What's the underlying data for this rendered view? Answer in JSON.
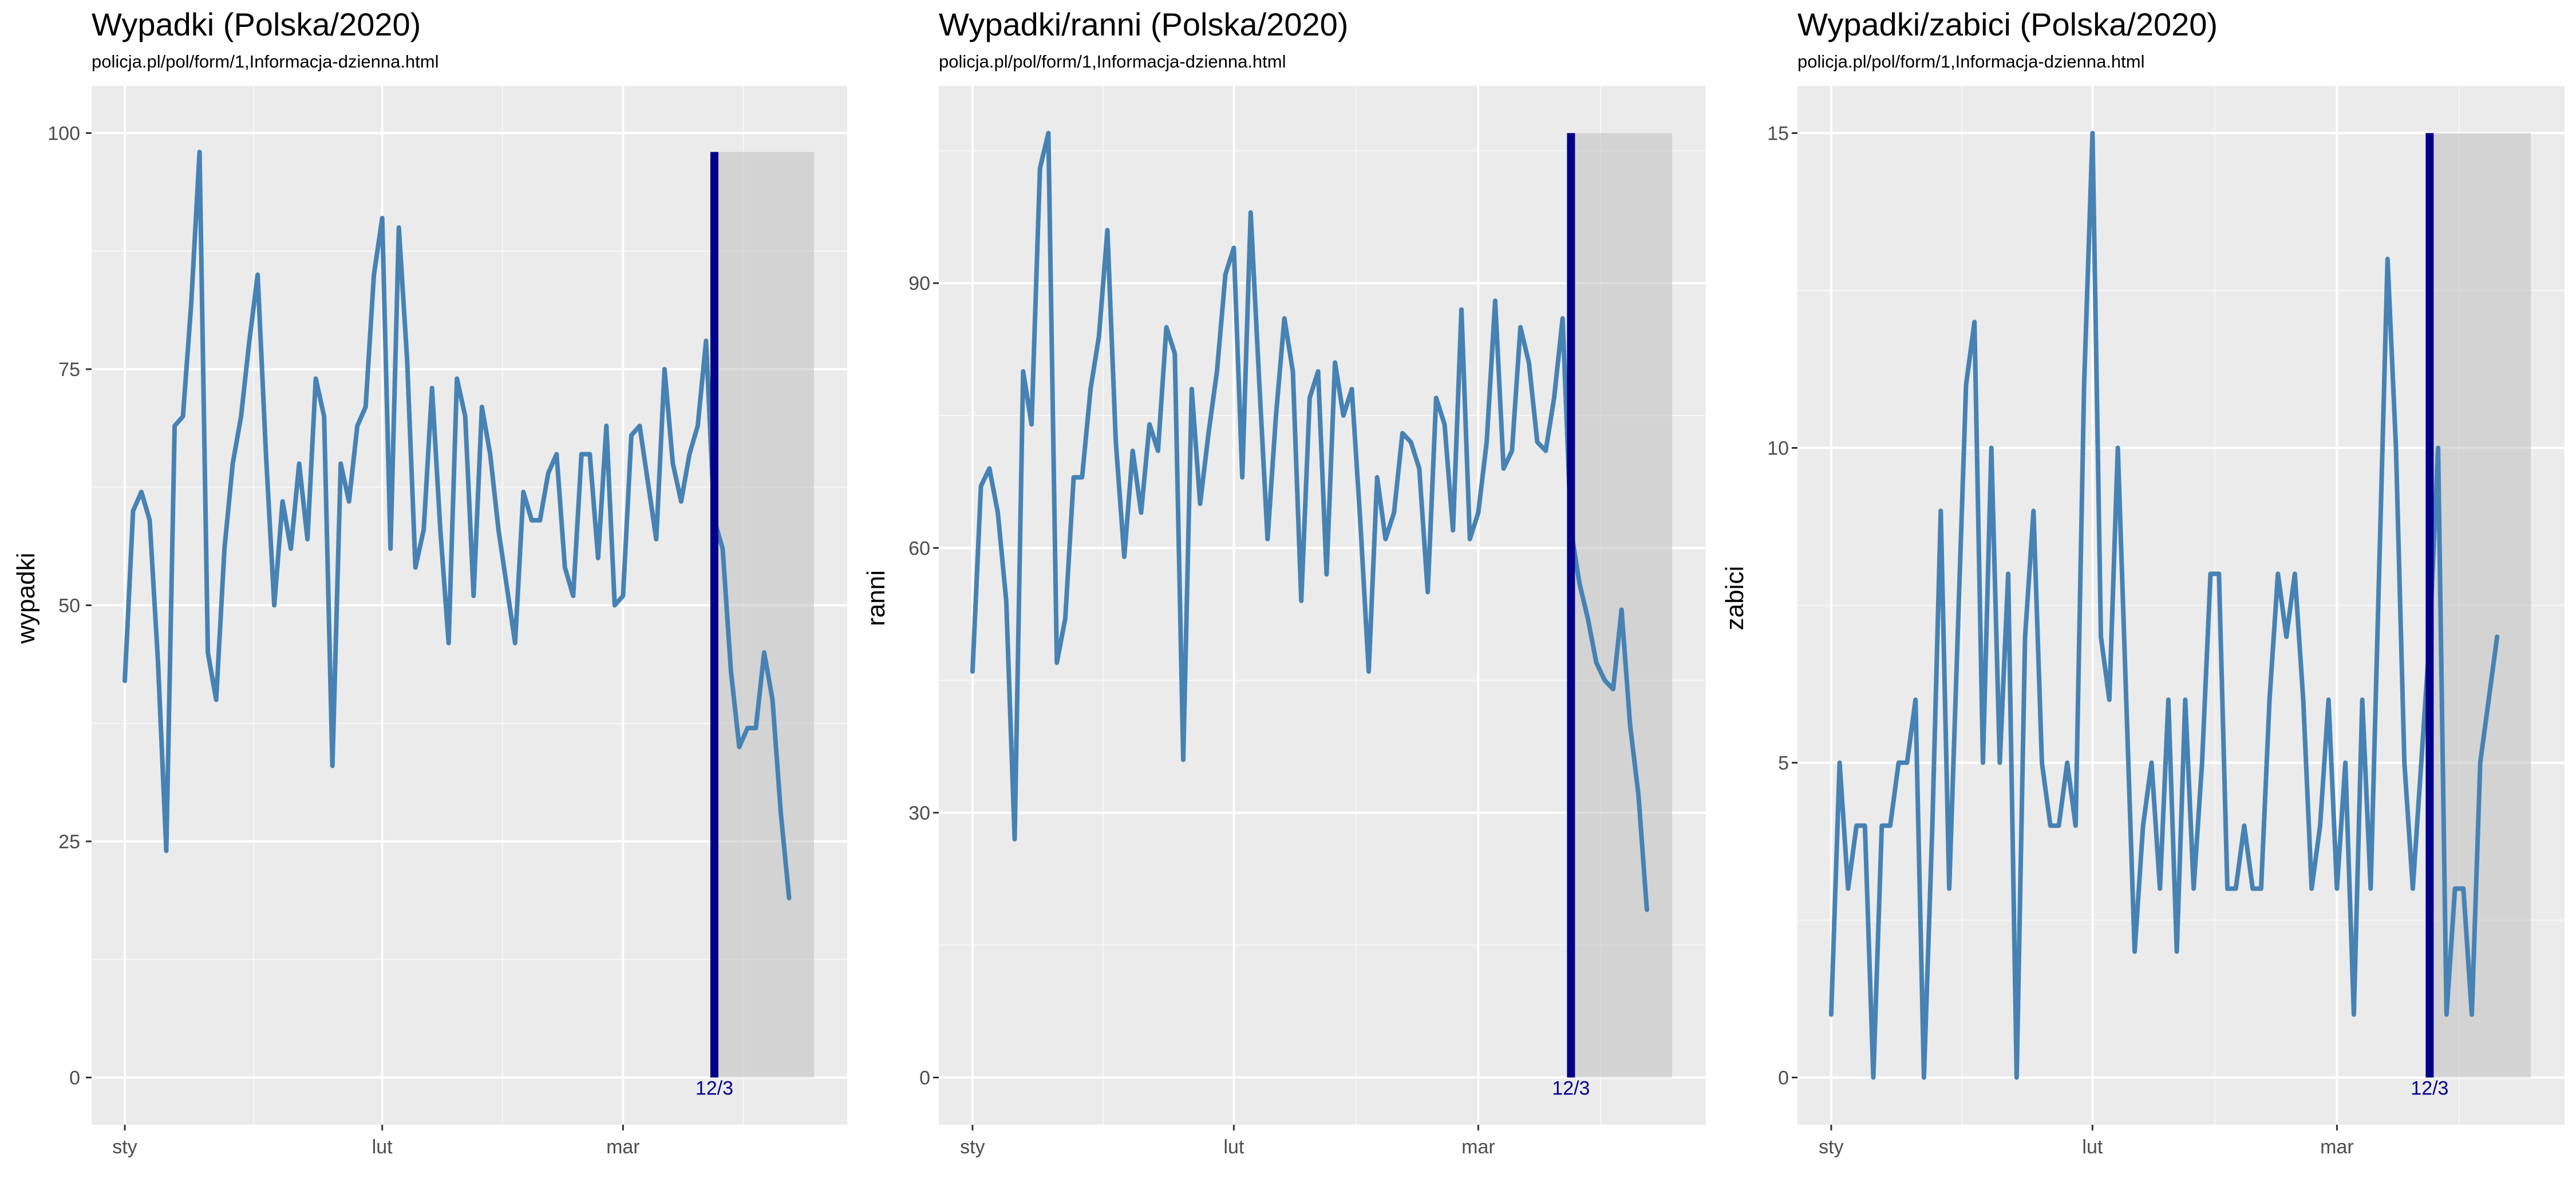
{
  "chart_data": [
    {
      "type": "line",
      "title": "Wypadki (Polska/2020)",
      "subtitle": "policja.pl/pol/form/1,Informacja-dzienna.html",
      "xlabel": "",
      "ylabel": "wypadki",
      "x_start": "2020-01-01",
      "x_ticks": [
        {
          "date": "2020-01-01",
          "label": "sty"
        },
        {
          "date": "2020-02-01",
          "label": "lut"
        },
        {
          "date": "2020-03-01",
          "label": "mar"
        }
      ],
      "xlim": [
        "2019-12-28",
        "2020-03-28"
      ],
      "ylim": [
        -5,
        105
      ],
      "y_ticks": [
        0,
        25,
        50,
        75,
        100
      ],
      "series": [
        {
          "color": "#4682b4",
          "values": [
            42,
            60,
            62,
            59,
            44,
            24,
            69,
            70,
            82,
            98,
            45,
            40,
            56,
            65,
            70,
            78,
            85,
            66,
            50,
            61,
            56,
            65,
            57,
            74,
            70,
            33,
            65,
            61,
            69,
            71,
            85,
            91,
            56,
            90,
            76,
            54,
            58,
            73,
            58,
            46,
            74,
            70,
            51,
            71,
            66,
            58,
            52,
            46,
            62,
            59,
            59,
            64,
            66,
            54,
            51,
            66,
            66,
            55,
            69,
            50,
            51,
            68,
            69,
            63,
            57,
            75,
            65,
            61,
            66,
            69,
            78,
            59,
            56,
            43,
            35,
            37,
            37,
            45,
            40,
            28,
            19
          ]
        }
      ],
      "marker": {
        "date": "2020-03-12",
        "label": "12/3",
        "color": "#00008b"
      },
      "shade_until": "2020-03-24",
      "grid": true
    },
    {
      "type": "line",
      "title": "Wypadki/ranni (Polska/2020)",
      "subtitle": "policja.pl/pol/form/1,Informacja-dzienna.html",
      "xlabel": "",
      "ylabel": "ranni",
      "x_start": "2020-01-01",
      "x_ticks": [
        {
          "date": "2020-01-01",
          "label": "sty"
        },
        {
          "date": "2020-02-01",
          "label": "lut"
        },
        {
          "date": "2020-03-01",
          "label": "mar"
        }
      ],
      "xlim": [
        "2019-12-28",
        "2020-03-28"
      ],
      "ylim": [
        -5.35,
        112.35
      ],
      "y_ticks": [
        0,
        30,
        60,
        90
      ],
      "series": [
        {
          "color": "#4682b4",
          "values": [
            46,
            67,
            69,
            64,
            54,
            27,
            80,
            74,
            103,
            107,
            47,
            52,
            68,
            68,
            78,
            84,
            96,
            72,
            59,
            71,
            64,
            74,
            71,
            85,
            82,
            36,
            78,
            65,
            73,
            80,
            91,
            94,
            68,
            98,
            79,
            61,
            75,
            86,
            80,
            54,
            77,
            80,
            57,
            81,
            75,
            78,
            63,
            46,
            68,
            61,
            64,
            73,
            72,
            69,
            55,
            77,
            74,
            62,
            87,
            61,
            64,
            72,
            88,
            69,
            71,
            85,
            81,
            72,
            71,
            77,
            86,
            62,
            56,
            52,
            47,
            45,
            44,
            53,
            40,
            32,
            19
          ]
        }
      ],
      "marker": {
        "date": "2020-03-12",
        "label": "12/3",
        "color": "#00008b"
      },
      "shade_until": "2020-03-24",
      "grid": true
    },
    {
      "type": "line",
      "title": "Wypadki/zabici (Polska/2020)",
      "subtitle": "policja.pl/pol/form/1,Informacja-dzienna.html",
      "xlabel": "",
      "ylabel": "zabici",
      "x_start": "2020-01-01",
      "x_ticks": [
        {
          "date": "2020-01-01",
          "label": "sty"
        },
        {
          "date": "2020-02-01",
          "label": "lut"
        },
        {
          "date": "2020-03-01",
          "label": "mar"
        }
      ],
      "xlim": [
        "2019-12-28",
        "2020-03-28"
      ],
      "ylim": [
        -0.75,
        15.75
      ],
      "y_ticks": [
        0,
        5,
        10,
        15
      ],
      "series": [
        {
          "color": "#4682b4",
          "values": [
            1,
            5,
            3,
            4,
            4,
            0,
            4,
            4,
            5,
            5,
            6,
            0,
            4,
            9,
            3,
            7,
            11,
            12,
            5,
            10,
            5,
            8,
            0,
            7,
            9,
            5,
            4,
            4,
            5,
            4,
            11,
            15,
            7,
            6,
            10,
            6,
            2,
            4,
            5,
            3,
            6,
            2,
            6,
            3,
            5,
            8,
            8,
            3,
            3,
            4,
            3,
            3,
            6,
            8,
            7,
            8,
            6,
            3,
            4,
            6,
            3,
            5,
            1,
            6,
            3,
            8,
            13,
            10,
            5,
            3,
            5,
            7,
            10,
            1,
            3,
            3,
            1,
            5,
            6,
            7
          ]
        }
      ],
      "marker": {
        "date": "2020-03-12",
        "label": "12/3",
        "color": "#00008b"
      },
      "shade_until": "2020-03-24",
      "grid": true
    }
  ]
}
